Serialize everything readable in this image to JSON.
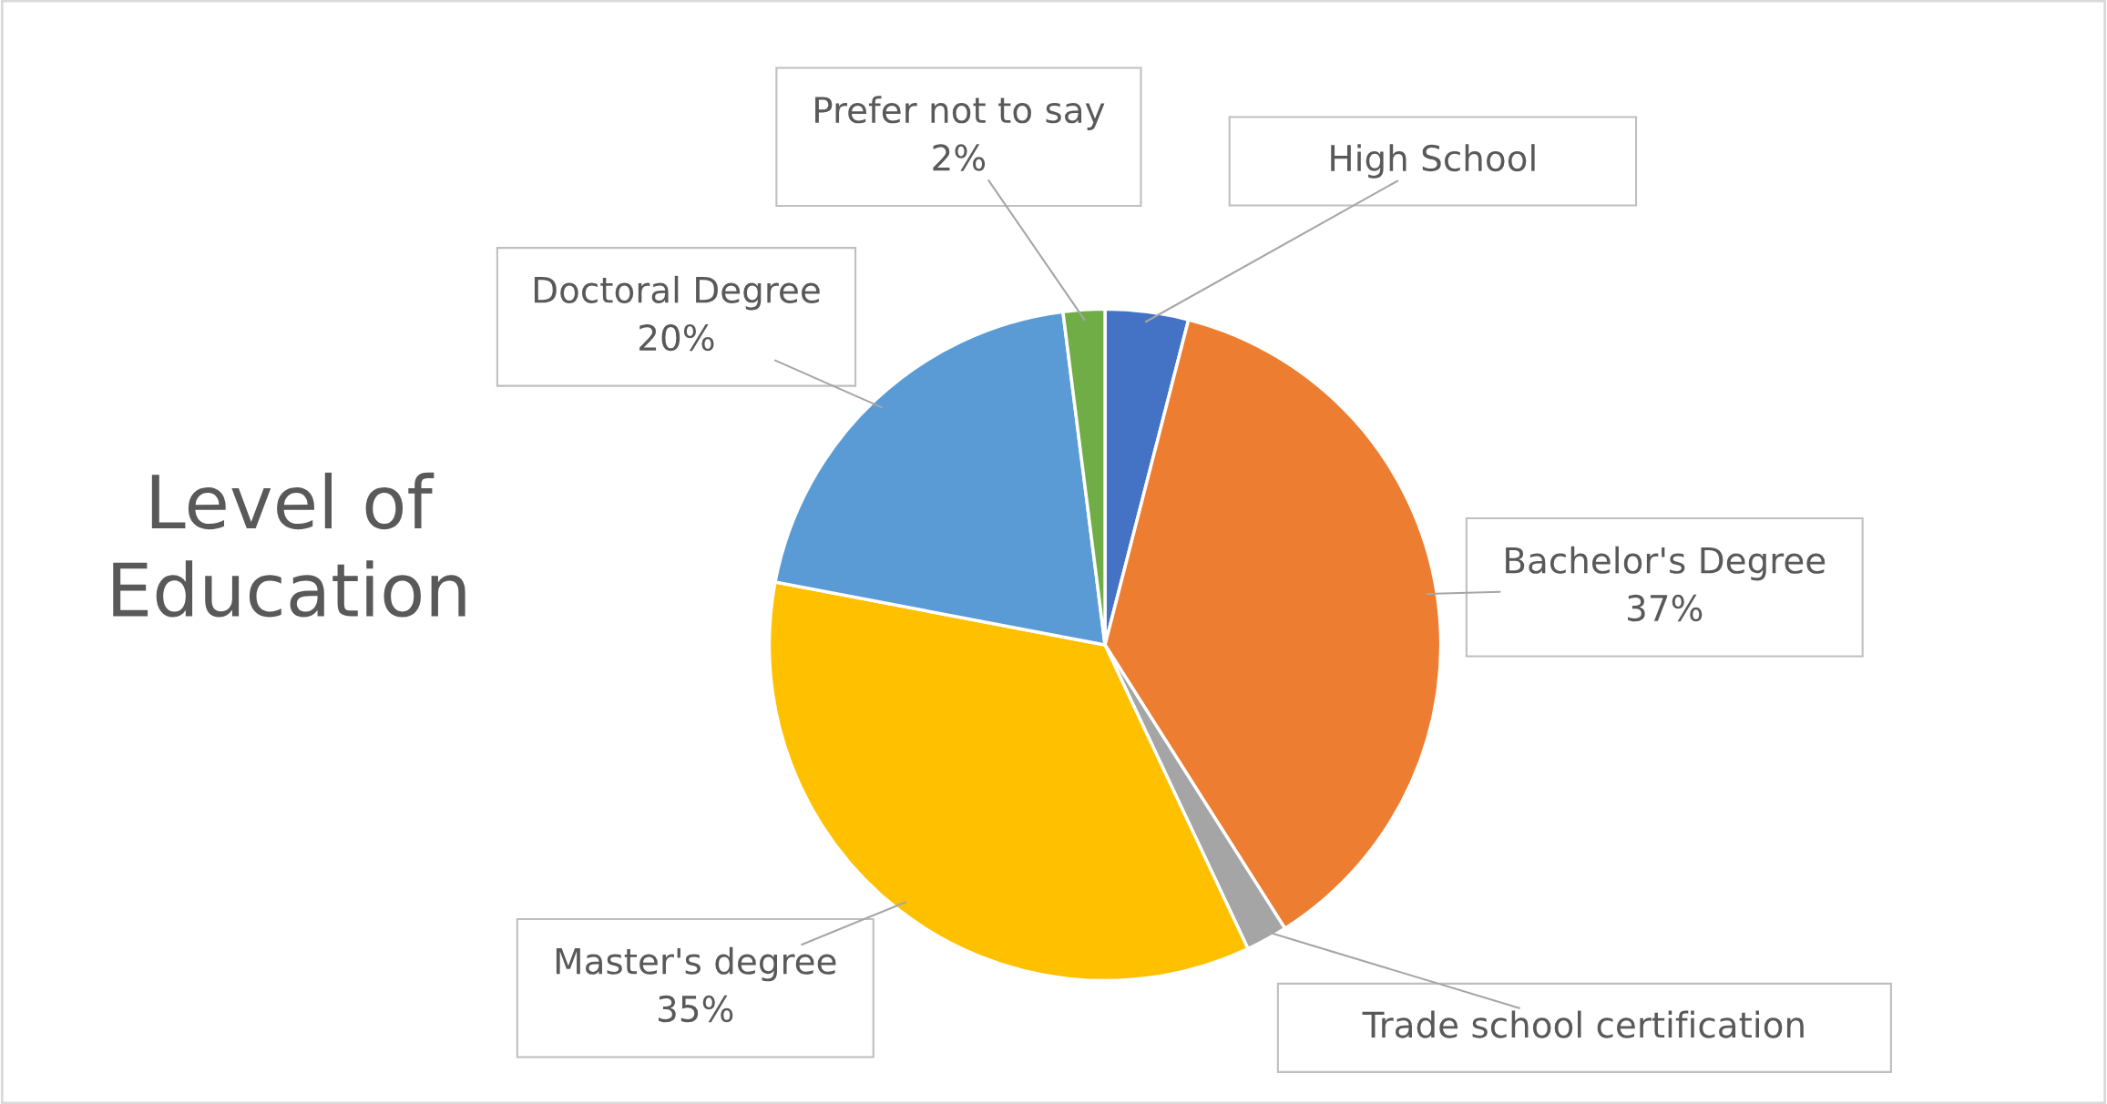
{
  "chart_data": {
    "type": "pie",
    "title": "Level of Education",
    "categories": [
      "High School",
      "Bachelor's Degree",
      "Trade school certification",
      "Master's degree",
      "Doctoral Degree",
      "Prefer not to say"
    ],
    "values": [
      4,
      37,
      2,
      35,
      20,
      2
    ],
    "colors": [
      "#4472c4",
      "#ed7d31",
      "#a5a5a5",
      "#ffc000",
      "#5b9bd5",
      "#70ad47"
    ],
    "value_labels": [
      null,
      "37%",
      null,
      "35%",
      "20%",
      "2%"
    ]
  }
}
